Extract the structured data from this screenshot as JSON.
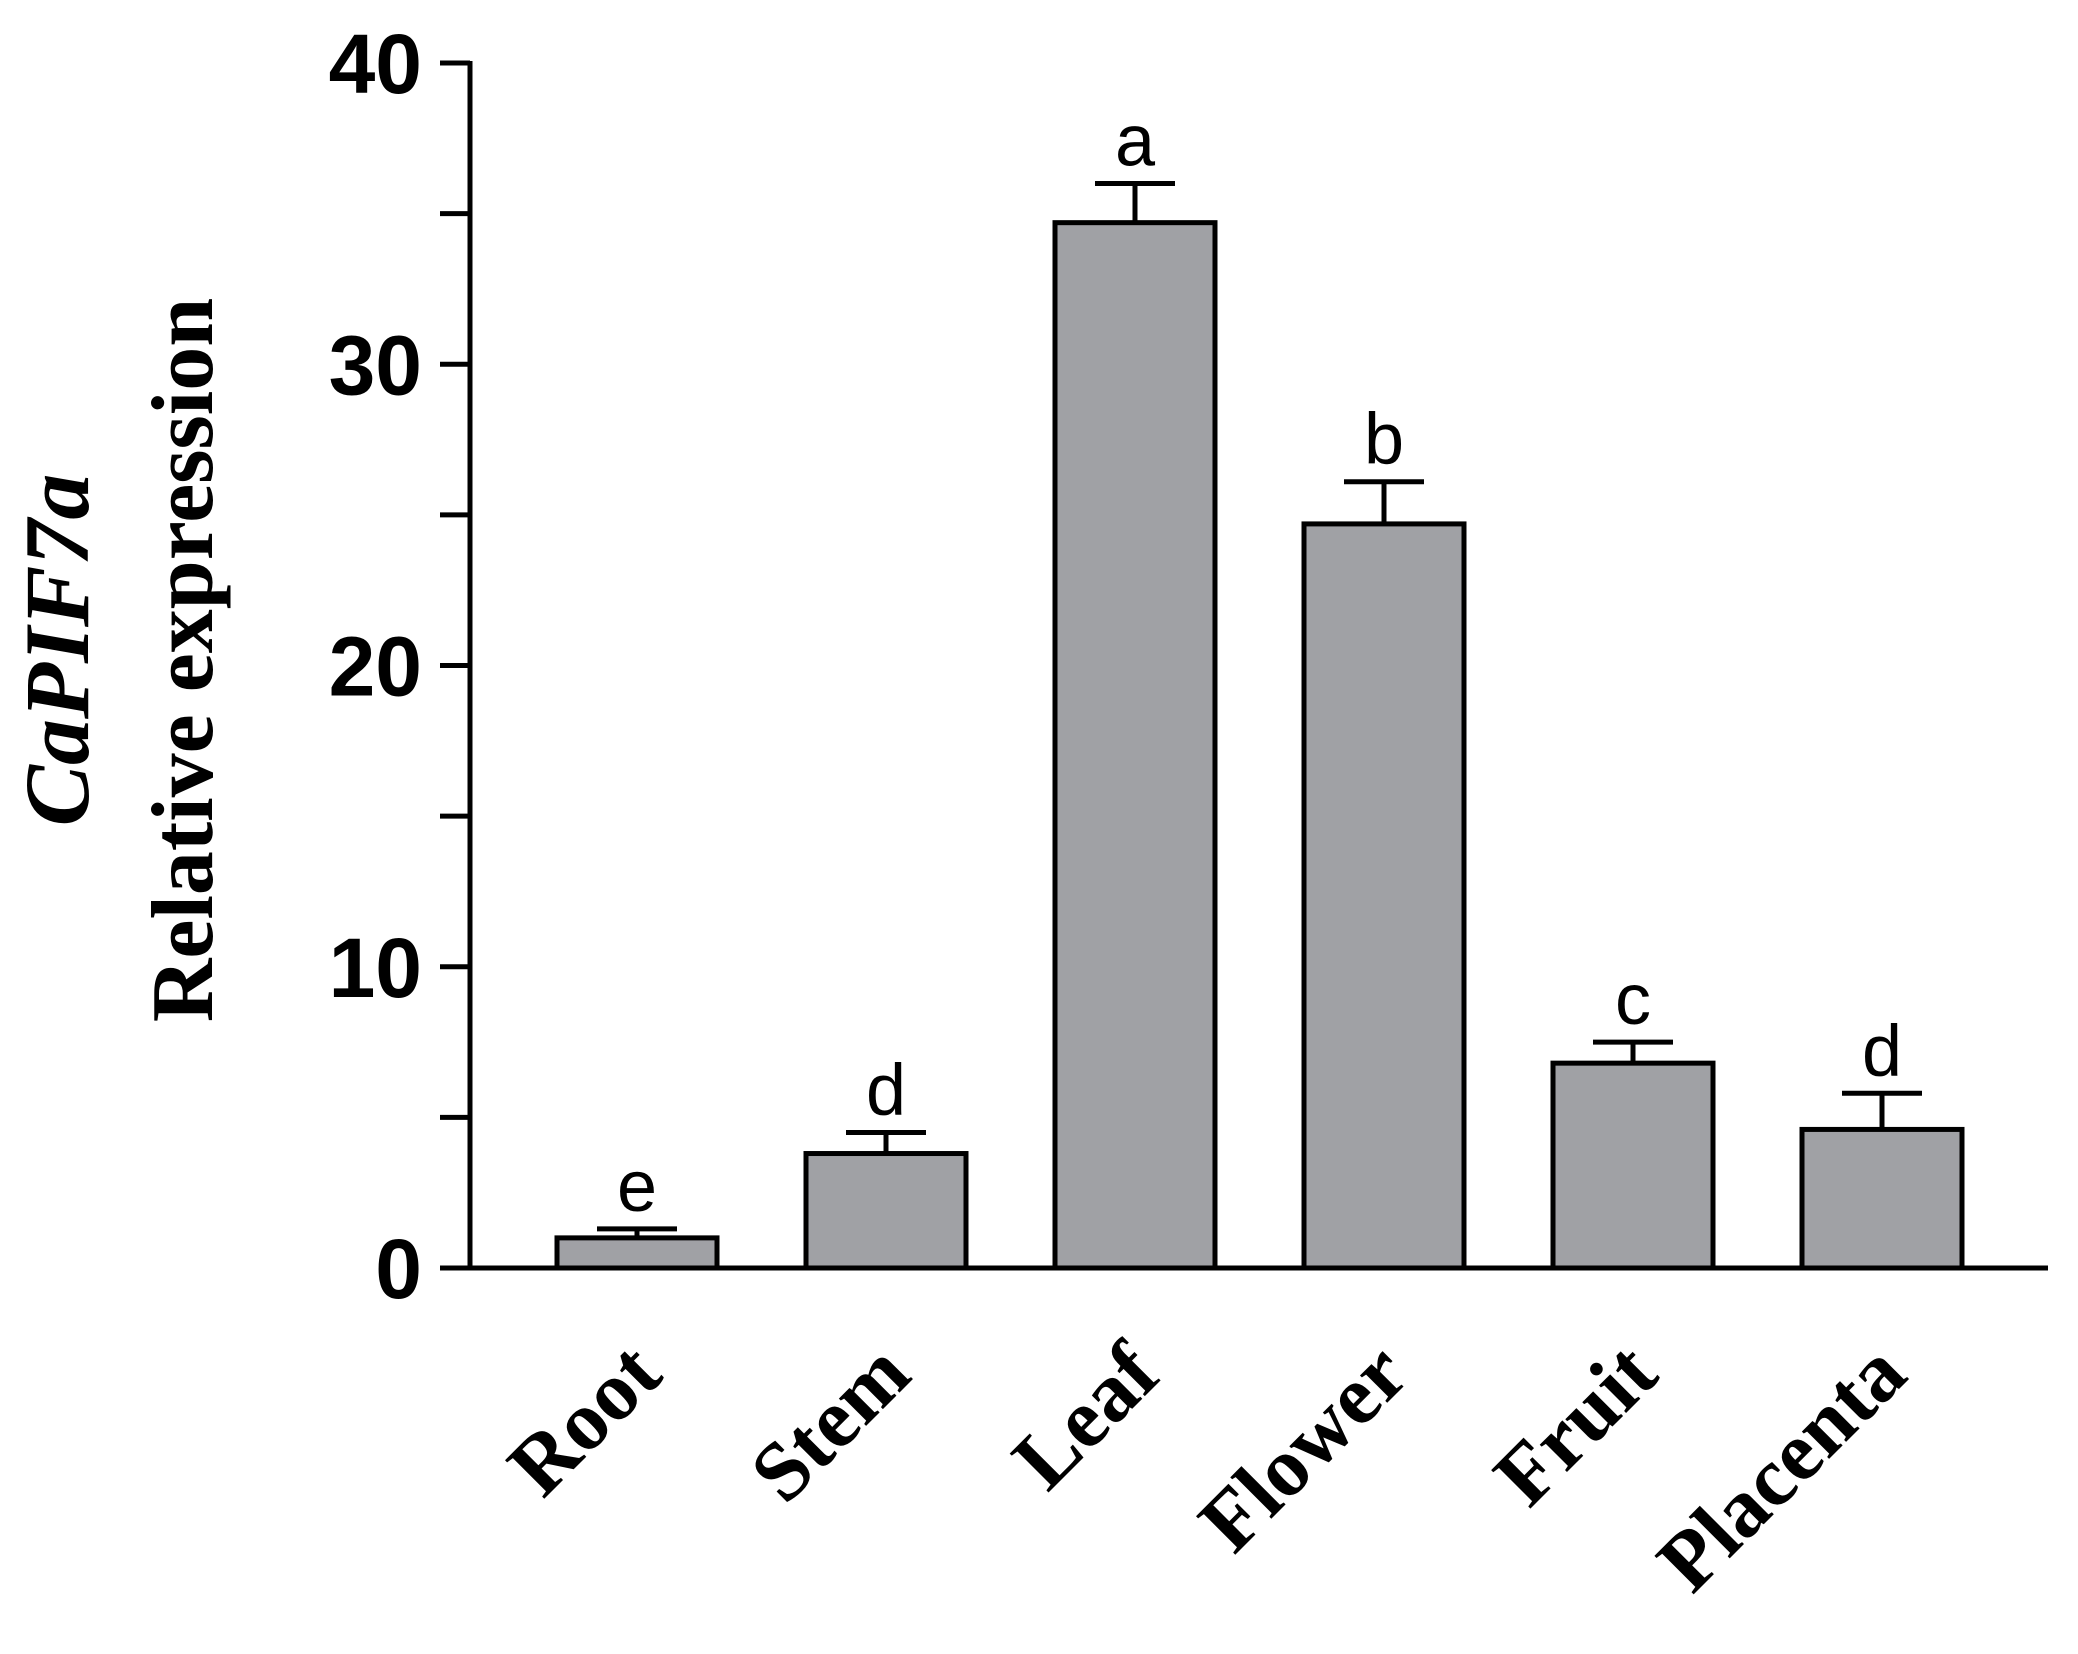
{
  "chart_data": {
    "type": "bar",
    "categories": [
      "Root",
      "Stem",
      "Leaf",
      "Flower",
      "Fruit",
      "Placenta"
    ],
    "values": [
      1.0,
      3.8,
      34.7,
      24.7,
      6.8,
      4.6
    ],
    "errors": [
      0.3,
      0.7,
      1.3,
      1.4,
      0.7,
      1.2
    ],
    "significance": [
      "e",
      "d",
      "a",
      "b",
      "c",
      "d"
    ],
    "ylabel_gene": "CaPIF7a",
    "ylabel": "Relative expression",
    "ylim": [
      0,
      40
    ],
    "yticks": [
      "0",
      "10",
      "20",
      "30",
      "40"
    ],
    "bar_color": "#a0a1a5",
    "grid": false,
    "legend": "none"
  }
}
